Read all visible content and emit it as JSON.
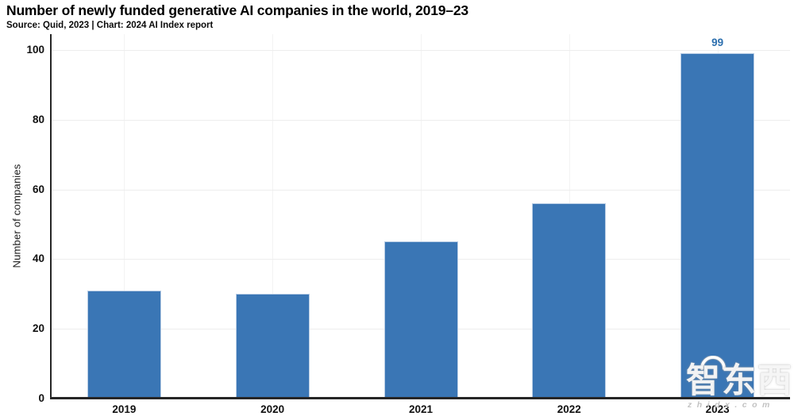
{
  "title": "Number of newly funded generative AI companies in the world, 2019–23",
  "subtitle": "Source: Quid, 2023 | Chart: 2024 AI Index report",
  "chart_data": {
    "type": "bar",
    "categories": [
      "2019",
      "2020",
      "2021",
      "2022",
      "2023"
    ],
    "values": [
      31,
      30,
      45,
      56,
      99
    ],
    "bar_value_labels": [
      null,
      null,
      null,
      null,
      "99"
    ],
    "title": "Number of newly funded generative AI companies in the world, 2019–23",
    "xlabel": "",
    "ylabel": "Number of companies",
    "ylim": [
      0,
      100
    ],
    "yticks": [
      0,
      20,
      40,
      60,
      80,
      100
    ],
    "grid": true,
    "legend": "none",
    "bar_color": "#3a76b5",
    "bar_edge_color": "#b9cde5",
    "value_label_color": "#2c6fae",
    "axis_color": "#262626",
    "gridline_color": "#ededed"
  },
  "watermark": {
    "logo_text": "智东西",
    "url_text": "zhidx.com"
  }
}
